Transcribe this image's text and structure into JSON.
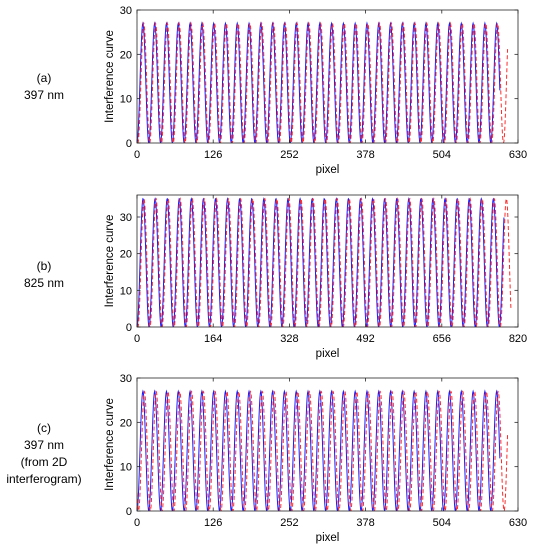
{
  "panels": [
    {
      "label_lines": [
        "(a)",
        "397 nm"
      ],
      "chart_data": {
        "type": "line",
        "ylabel": "Interference curve",
        "xlabel": "pixel",
        "xlim": [
          0,
          630
        ],
        "ylim": [
          0,
          30
        ],
        "xticks": [
          0,
          126,
          252,
          378,
          504,
          630
        ],
        "yticks": [
          0,
          10,
          20,
          30
        ],
        "grid": false,
        "amplitude": 27,
        "period_px": 19.5,
        "phase_shift_px": 1.5,
        "data_end_x": 600,
        "dashed_end_x": 613,
        "series": [
          {
            "color": "#1a1aff",
            "style": "solid"
          },
          {
            "color": "#ff2a2a",
            "style": "dashed"
          }
        ]
      }
    },
    {
      "label_lines": [
        "(b)",
        "825 nm"
      ],
      "chart_data": {
        "type": "line",
        "ylabel": "Interference curve",
        "xlabel": "pixel",
        "xlim": [
          0,
          820
        ],
        "ylim": [
          0,
          36
        ],
        "xticks": [
          0,
          164,
          328,
          492,
          656,
          820
        ],
        "yticks": [
          0,
          10,
          20,
          30
        ],
        "grid": false,
        "amplitude": 35,
        "period_px": 26,
        "phase_shift_px": 2,
        "data_end_x": 790,
        "dashed_end_x": 805,
        "series": [
          {
            "color": "#1a1aff",
            "style": "solid"
          },
          {
            "color": "#ff2a2a",
            "style": "dashed"
          }
        ]
      }
    },
    {
      "label_lines": [
        "(c)",
        "397 nm",
        "(from 2D",
        "interferogram)"
      ],
      "chart_data": {
        "type": "line",
        "ylabel": "Interference curve",
        "xlabel": "pixel",
        "xlim": [
          0,
          630
        ],
        "ylim": [
          0,
          30
        ],
        "xticks": [
          0,
          126,
          252,
          378,
          504,
          630
        ],
        "yticks": [
          0,
          10,
          20,
          30
        ],
        "grid": false,
        "amplitude": 27,
        "period_px": 19.5,
        "phase_shift_px": 2.5,
        "data_end_x": 600,
        "dashed_end_x": 613,
        "series": [
          {
            "color": "#1a1aff",
            "style": "solid"
          },
          {
            "color": "#ff2a2a",
            "style": "dashed"
          }
        ]
      }
    }
  ]
}
